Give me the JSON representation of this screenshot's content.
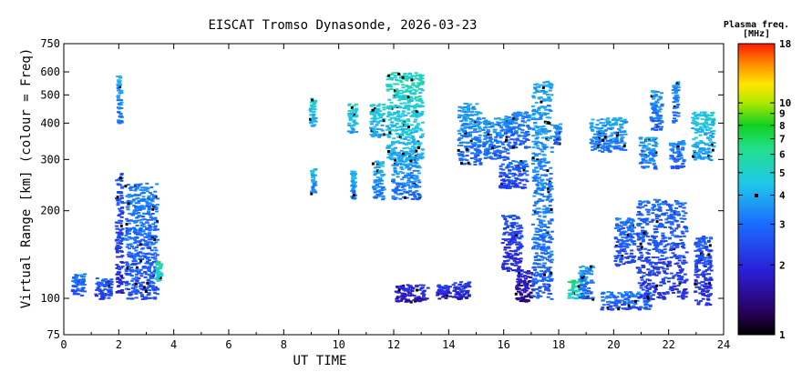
{
  "chart_data": {
    "type": "scatter",
    "title": "EISCAT Tromso Dynasonde, 2026-03-23",
    "xlabel": "UT TIME",
    "ylabel": "Virtual Range [km] (colour = Freq)",
    "xlim": [
      0,
      24
    ],
    "ylim": [
      75,
      750
    ],
    "y_scale": "log",
    "x_ticks": [
      0,
      2,
      4,
      6,
      8,
      10,
      12,
      14,
      16,
      18,
      20,
      22,
      24
    ],
    "y_ticks": [
      75,
      100,
      200,
      300,
      400,
      500,
      600,
      750
    ],
    "colorbar": {
      "title": "Plasma freq.",
      "unit": "[MHz]",
      "scale": "log",
      "range": [
        1,
        18
      ],
      "ticks": [
        1,
        2,
        3,
        4,
        5,
        6,
        7,
        8,
        9,
        10,
        18
      ]
    },
    "grid": false,
    "echo_clusters": [
      {
        "t": [
          0.25,
          0.7
        ],
        "h": [
          103,
          122
        ],
        "f": 2.9
      },
      {
        "t": [
          1.1,
          1.7
        ],
        "h": [
          100,
          118
        ],
        "f": 2.6
      },
      {
        "t": [
          1.85,
          2.1
        ],
        "h": [
          105,
          270
        ],
        "f": 2.4
      },
      {
        "t": [
          1.9,
          2.05
        ],
        "h": [
          400,
          590
        ],
        "f": 3.5
      },
      {
        "t": [
          2.2,
          3.35
        ],
        "h": [
          100,
          250
        ],
        "f": 3.0
      },
      {
        "t": [
          3.3,
          3.5
        ],
        "h": [
          115,
          135
        ],
        "f": 5.5
      },
      {
        "t": [
          8.9,
          9.1
        ],
        "h": [
          390,
          490
        ],
        "f": 4.5
      },
      {
        "t": [
          8.95,
          9.1
        ],
        "h": [
          230,
          280
        ],
        "f": 3.8
      },
      {
        "t": [
          10.3,
          10.6
        ],
        "h": [
          370,
          470
        ],
        "f": 4.6
      },
      {
        "t": [
          10.4,
          10.55
        ],
        "h": [
          220,
          275
        ],
        "f": 3.7
      },
      {
        "t": [
          11.1,
          11.6
        ],
        "h": [
          360,
          470
        ],
        "f": 4.4
      },
      {
        "t": [
          11.2,
          11.6
        ],
        "h": [
          220,
          300
        ],
        "f": 3.8
      },
      {
        "t": [
          11.7,
          13.0
        ],
        "h": [
          300,
          600
        ],
        "f": 4.8
      },
      {
        "t": [
          11.9,
          12.9
        ],
        "h": [
          220,
          320
        ],
        "f": 3.6
      },
      {
        "t": [
          12.0,
          13.2
        ],
        "h": [
          98,
          112
        ],
        "f": 1.9
      },
      {
        "t": [
          13.5,
          14.0
        ],
        "h": [
          100,
          112
        ],
        "f": 2.0
      },
      {
        "t": [
          14.1,
          14.7
        ],
        "h": [
          100,
          115
        ],
        "f": 2.1
      },
      {
        "t": [
          14.3,
          15.1
        ],
        "h": [
          290,
          470
        ],
        "f": 3.4
      },
      {
        "t": [
          15.2,
          16.1
        ],
        "h": [
          300,
          420
        ],
        "f": 3.3
      },
      {
        "t": [
          15.8,
          16.8
        ],
        "h": [
          240,
          300
        ],
        "f": 2.7
      },
      {
        "t": [
          16.0,
          16.9
        ],
        "h": [
          330,
          440
        ],
        "f": 3.1
      },
      {
        "t": [
          15.9,
          16.6
        ],
        "h": [
          125,
          195
        ],
        "f": 2.3
      },
      {
        "t": [
          16.4,
          17.0
        ],
        "h": [
          98,
          125
        ],
        "f": 1.7
      },
      {
        "t": [
          17.0,
          17.7
        ],
        "h": [
          100,
          560
        ],
        "f": 3.4
      },
      {
        "t": [
          17.8,
          18.0
        ],
        "h": [
          340,
          400
        ],
        "f": 3.2
      },
      {
        "t": [
          18.3,
          18.9
        ],
        "h": [
          100,
          116
        ],
        "f": 5.8
      },
      {
        "t": [
          18.7,
          19.2
        ],
        "h": [
          100,
          130
        ],
        "f": 3.2
      },
      {
        "t": [
          19.1,
          20.4
        ],
        "h": [
          320,
          420
        ],
        "f": 3.6
      },
      {
        "t": [
          19.5,
          21.3
        ],
        "h": [
          92,
          106
        ],
        "f": 3.0
      },
      {
        "t": [
          20.0,
          20.7
        ],
        "h": [
          130,
          190
        ],
        "f": 2.8
      },
      {
        "t": [
          20.9,
          21.5
        ],
        "h": [
          280,
          360
        ],
        "f": 3.5
      },
      {
        "t": [
          20.8,
          22.6
        ],
        "h": [
          100,
          220
        ],
        "f": 2.6
      },
      {
        "t": [
          21.3,
          21.7
        ],
        "h": [
          380,
          520
        ],
        "f": 3.3
      },
      {
        "t": [
          22.0,
          22.5
        ],
        "h": [
          280,
          350
        ],
        "f": 3.2
      },
      {
        "t": [
          22.1,
          22.3
        ],
        "h": [
          400,
          560
        ],
        "f": 3.4
      },
      {
        "t": [
          22.8,
          23.6
        ],
        "h": [
          300,
          440
        ],
        "f": 4.3
      },
      {
        "t": [
          22.9,
          23.5
        ],
        "h": [
          95,
          165
        ],
        "f": 2.4
      }
    ]
  }
}
